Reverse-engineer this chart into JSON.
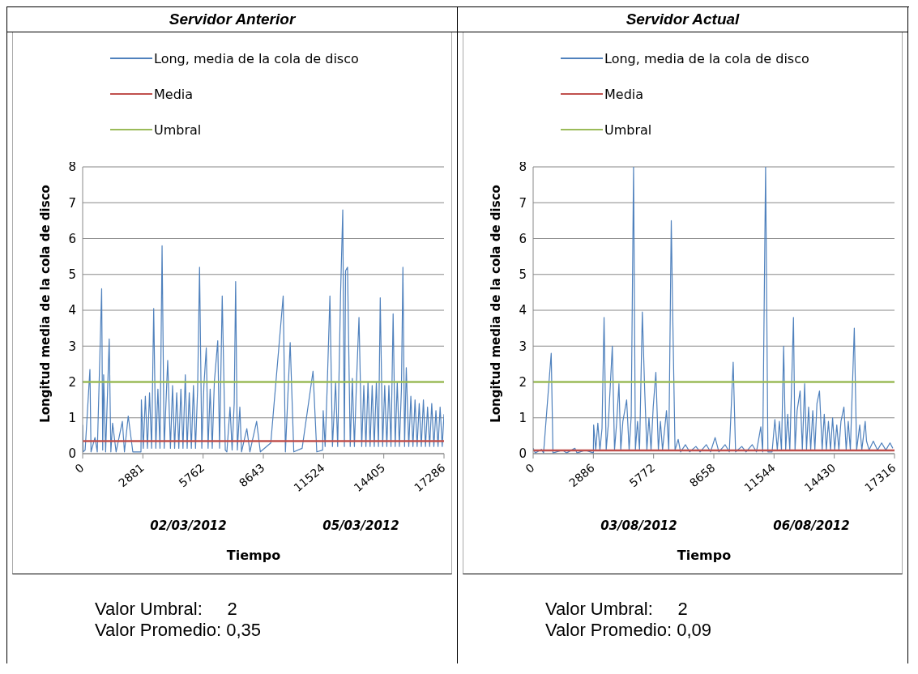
{
  "chart_data": [
    {
      "type": "line",
      "title": "Servidor Anterior",
      "xlabel": "Tiempo",
      "ylabel": "Longitud media de la cola de disco",
      "xlim": [
        0,
        17286
      ],
      "xticks": [
        0,
        2881,
        5762,
        8643,
        11524,
        14405,
        17286
      ],
      "ylim": [
        0,
        8
      ],
      "yticks": [
        0,
        1,
        2,
        3,
        4,
        5,
        6,
        7,
        8
      ],
      "grid": "y",
      "legend": "top left",
      "marker": "none",
      "line_style": "solid",
      "annotations": [
        "02/03/2012",
        "05/03/2012",
        "Valor Umbral:     2",
        "Valor Promedio: 0,35"
      ],
      "series": [
        {
          "name": "Long, media de la cola de disco",
          "color": "#4f81bd",
          "x": [
            0,
            27,
            120,
            348,
            400,
            589,
            700,
            910,
            960,
            1004,
            1100,
            1271,
            1350,
            1432,
            1600,
            1900,
            2000,
            2181,
            2400,
            2790,
            2810,
            2900,
            3000,
            3100,
            3200,
            3300,
            3399,
            3500,
            3600,
            3700,
            3800,
            3900,
            4068,
            4200,
            4300,
            4400,
            4500,
            4600,
            4700,
            4800,
            4911,
            5000,
            5100,
            5200,
            5300,
            5400,
            5500,
            5593,
            5700,
            5800,
            5914,
            6000,
            6100,
            6200,
            6300,
            6463,
            6550,
            6677,
            6824,
            6900,
            7051,
            7150,
            7250,
            7319,
            7400,
            7520,
            7600,
            7854,
            8000,
            8322,
            8500,
            9000,
            9593,
            9700,
            9928,
            10100,
            10500,
            11020,
            11200,
            11480,
            11507,
            11600,
            11700,
            11828,
            11950,
            12100,
            12200,
            12336,
            12443,
            12520,
            12577,
            12671,
            12800,
            12900,
            13000,
            13100,
            13219,
            13350,
            13450,
            13550,
            13650,
            13750,
            13850,
            13950,
            14050,
            14150,
            14236,
            14350,
            14450,
            14550,
            14650,
            14750,
            14852,
            14950,
            15050,
            15150,
            15250,
            15320,
            15400,
            15481,
            15600,
            15700,
            15800,
            15900,
            16000,
            16100,
            16200,
            16300,
            16400,
            16500,
            16600,
            16700,
            16800,
            16900,
            17000,
            17100,
            17200,
            17286
          ],
          "values": [
            0.8,
            0.05,
            0.1,
            2.35,
            0.05,
            0.45,
            0.05,
            4.6,
            0.1,
            2.2,
            0.05,
            3.2,
            0.05,
            0.85,
            0.05,
            0.9,
            0.05,
            1.05,
            0.05,
            0.05,
            1.5,
            0.15,
            1.6,
            0.15,
            1.7,
            0.15,
            4.05,
            0.15,
            1.8,
            0.15,
            5.8,
            0.15,
            2.6,
            0.15,
            1.9,
            0.15,
            1.7,
            0.15,
            1.8,
            0.15,
            2.2,
            0.15,
            1.7,
            0.15,
            1.9,
            0.15,
            1.8,
            5.2,
            0.15,
            1.9,
            2.95,
            0.15,
            1.8,
            0.15,
            2.0,
            3.15,
            0.15,
            4.4,
            0.1,
            0.05,
            1.3,
            0.1,
            1.4,
            4.8,
            0.1,
            1.3,
            0.05,
            0.7,
            0.05,
            0.9,
            0.05,
            0.3,
            4.4,
            0.05,
            3.1,
            0.05,
            0.15,
            2.3,
            0.05,
            0.1,
            1.2,
            0.2,
            1.9,
            4.4,
            0.2,
            2.0,
            0.2,
            4.4,
            6.8,
            0.2,
            5.1,
            5.2,
            0.2,
            2.1,
            0.2,
            2.0,
            3.8,
            0.2,
            1.9,
            0.2,
            2.0,
            0.2,
            1.9,
            0.2,
            2.0,
            0.2,
            4.35,
            0.2,
            1.9,
            0.2,
            1.9,
            0.2,
            3.9,
            0.2,
            2.0,
            0.2,
            1.8,
            5.2,
            0.2,
            2.4,
            0.2,
            1.6,
            0.2,
            1.5,
            0.2,
            1.4,
            0.2,
            1.5,
            0.2,
            1.3,
            0.2,
            1.4,
            0.2,
            1.2,
            0.2,
            1.3,
            0.2,
            1.1
          ]
        },
        {
          "name": "Media",
          "color": "#c0504d",
          "x": [
            0,
            17286
          ],
          "values": [
            0.35,
            0.35
          ]
        },
        {
          "name": "Umbral",
          "color": "#9bbb59",
          "x": [
            0,
            17286
          ],
          "values": [
            2,
            2
          ]
        }
      ]
    },
    {
      "type": "line",
      "title": "Servidor Actual",
      "xlabel": "Tiempo",
      "ylabel": "Longitud media de la cola de disco",
      "xlim": [
        0,
        17316
      ],
      "xticks": [
        0,
        2886,
        5772,
        8658,
        11544,
        14430,
        17316
      ],
      "ylim": [
        0,
        8
      ],
      "yticks": [
        0,
        1,
        2,
        3,
        4,
        5,
        6,
        7,
        8
      ],
      "grid": "y",
      "legend": "top left",
      "marker": "none",
      "line_style": "solid",
      "annotations": [
        "03/08/2012",
        "06/08/2012",
        "Valor Umbral:     2",
        "Valor Promedio: 0,09"
      ],
      "series": [
        {
          "name": "Long, media de la cola de disco",
          "color": "#4f81bd",
          "x": [
            0,
            100,
            400,
            500,
            866,
            950,
            1400,
            1600,
            2000,
            2100,
            2500,
            2886,
            2900,
            3000,
            3100,
            3200,
            3300,
            3399,
            3500,
            3600,
            3794,
            3900,
            4000,
            4112,
            4200,
            4300,
            4481,
            4600,
            4700,
            4812,
            4900,
            5000,
            5100,
            5232,
            5347,
            5450,
            5550,
            5650,
            5754,
            5881,
            6000,
            6100,
            6200,
            6390,
            6500,
            6619,
            6683,
            6800,
            6950,
            7065,
            7300,
            7500,
            7800,
            8000,
            8300,
            8500,
            8720,
            8900,
            9200,
            9400,
            9586,
            9700,
            10000,
            10200,
            10500,
            10700,
            10910,
            11000,
            11139,
            11250,
            11450,
            11584,
            11700,
            11800,
            11900,
            12004,
            12100,
            12200,
            12300,
            12475,
            12550,
            12650,
            12793,
            12900,
            13010,
            13100,
            13200,
            13300,
            13400,
            13500,
            13600,
            13722,
            13850,
            13950,
            14050,
            14150,
            14250,
            14350,
            14450,
            14550,
            14650,
            14750,
            14893,
            15000,
            15100,
            15200,
            15390,
            15500,
            15650,
            15750,
            15912,
            15976,
            16100,
            16300,
            16500,
            16700,
            16900,
            17100,
            17236
          ],
          "values": [
            0.15,
            0.02,
            0.12,
            0.02,
            2.8,
            0.02,
            0.1,
            0.02,
            0.15,
            0.02,
            0.1,
            0.02,
            0.8,
            0.1,
            0.85,
            0.1,
            0.7,
            3.8,
            0.1,
            0.8,
            3.0,
            0.1,
            0.85,
            1.95,
            0.1,
            0.9,
            1.5,
            0.1,
            1.05,
            8,
            0.1,
            0.9,
            0.1,
            3.95,
            1.75,
            0.1,
            1.0,
            0.1,
            1.3,
            2.27,
            0.1,
            0.9,
            0.1,
            1.2,
            0.1,
            6.5,
            4.05,
            0.1,
            0.4,
            0.05,
            0.25,
            0.05,
            0.2,
            0.05,
            0.25,
            0.05,
            0.45,
            0.05,
            0.25,
            0.05,
            2.55,
            0.05,
            0.2,
            0.05,
            0.25,
            0.05,
            0.75,
            0.05,
            8,
            0.05,
            0.05,
            0.95,
            0.1,
            0.9,
            0.1,
            3.0,
            0.1,
            1.1,
            0.1,
            3.8,
            0.1,
            1.2,
            1.75,
            0.1,
            1.95,
            0.1,
            1.3,
            0.1,
            1.2,
            0.1,
            1.4,
            1.75,
            0.1,
            1.1,
            0.1,
            0.9,
            0.1,
            1.0,
            0.1,
            0.8,
            0.1,
            0.9,
            1.3,
            0.1,
            0.9,
            0.1,
            3.5,
            0.1,
            0.8,
            0.1,
            0.9,
            0.35,
            0.1,
            0.35,
            0.1,
            0.3,
            0.1,
            0.3,
            0.15
          ]
        },
        {
          "name": "Media",
          "color": "#c0504d",
          "x": [
            0,
            17316
          ],
          "values": [
            0.09,
            0.09
          ]
        },
        {
          "name": "Umbral",
          "color": "#9bbb59",
          "x": [
            0,
            17316
          ],
          "values": [
            2,
            2
          ]
        }
      ]
    }
  ]
}
